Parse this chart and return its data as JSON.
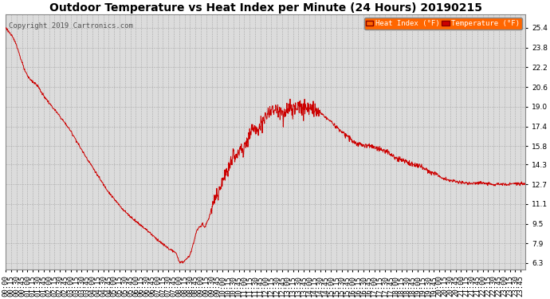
{
  "title": "Outdoor Temperature vs Heat Index per Minute (24 Hours) 20190215",
  "copyright": "Copyright 2019 Cartronics.com",
  "yticks": [
    6.3,
    7.9,
    9.5,
    11.1,
    12.7,
    14.3,
    15.8,
    17.4,
    19.0,
    20.6,
    22.2,
    23.8,
    25.4
  ],
  "ymin": 5.8,
  "ymax": 26.5,
  "legend_labels": [
    "Heat Index (°F)",
    "Temperature (°F)"
  ],
  "legend_bg": "#FF6600",
  "line_color": "#CC0000",
  "bg_color": "#DCDCDC",
  "grid_color": "#AAAAAA",
  "title_fontsize": 10,
  "tick_fontsize": 6.5,
  "copyright_fontsize": 6.5
}
